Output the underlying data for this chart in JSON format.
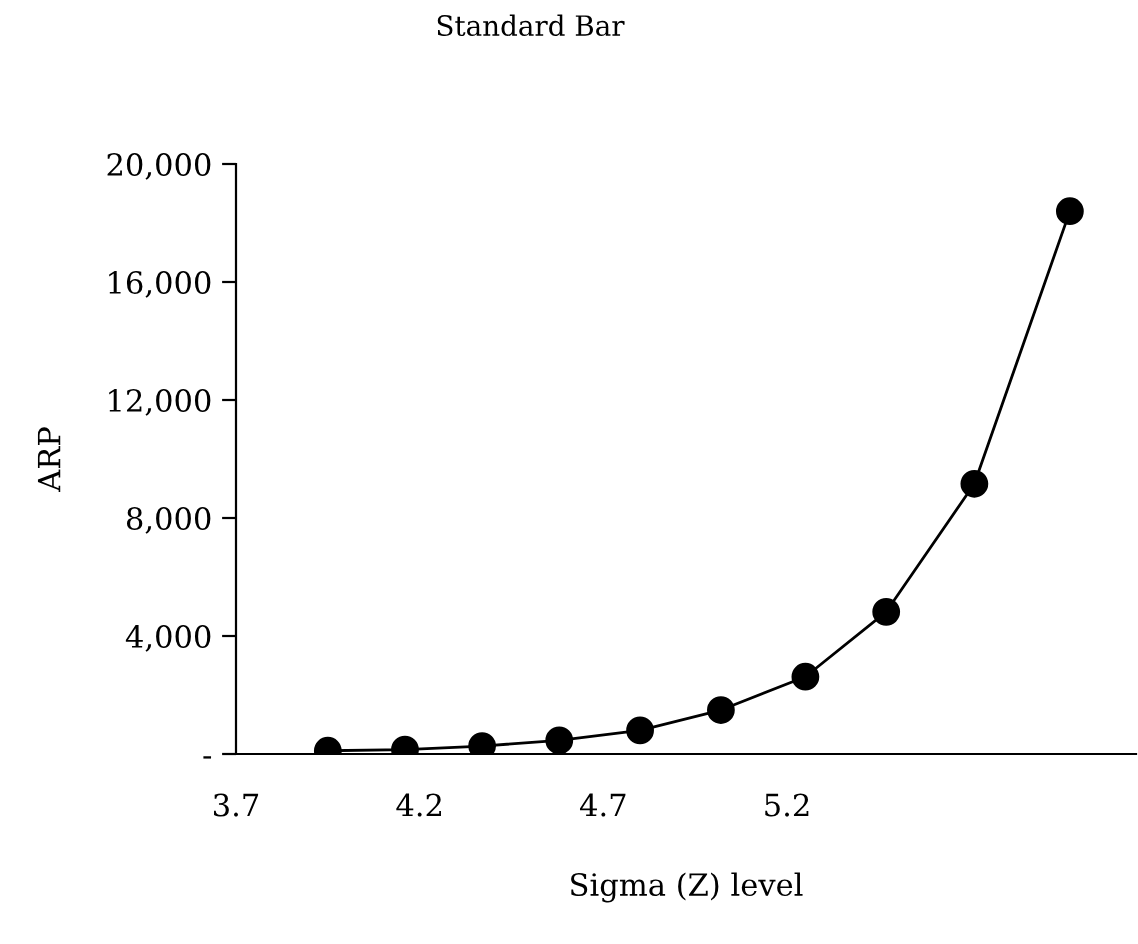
{
  "chart_data": {
    "type": "line",
    "title": "Standard Bar",
    "xlabel": "Sigma (Z) level",
    "ylabel": "ARP",
    "x": [
      3.95,
      4.16,
      4.37,
      4.58,
      4.8,
      5.02,
      5.25,
      5.47,
      5.71,
      5.97
    ],
    "series": [
      {
        "color": "#000000",
        "values": [
          110,
          150,
          270,
          460,
          800,
          1490,
          2620,
          4820,
          9160,
          18400
        ]
      }
    ],
    "marker": "circle",
    "line_style": "solid",
    "grid": false,
    "legend": false,
    "xlim": [
      3.7,
      6.15
    ],
    "xticks": [
      3.7,
      4.2,
      4.7,
      5.2
    ],
    "ylim": [
      0,
      20000
    ],
    "yticks": [
      {
        "value": 0,
        "label": "-"
      },
      {
        "value": 4000,
        "label": "4,000"
      },
      {
        "value": 8000,
        "label": "8,000"
      },
      {
        "value": 12000,
        "label": "12,000"
      },
      {
        "value": 16000,
        "label": "16,000"
      },
      {
        "value": 20000,
        "label": "20,000"
      }
    ]
  }
}
